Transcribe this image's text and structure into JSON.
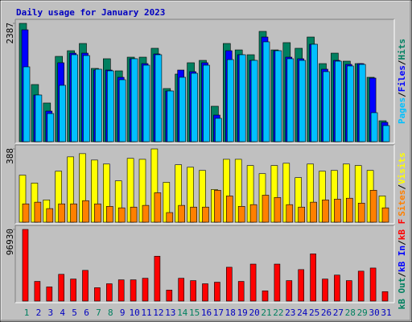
{
  "title": "Daily usage for January 2023",
  "chart_data": [
    {
      "type": "bar",
      "legend_separator": "/",
      "ylim": [
        0,
        2387
      ],
      "yticks": [
        2387
      ],
      "series": [
        {
          "name": "Hits",
          "color": "#008060",
          "values": [
            2387,
            1153,
            780,
            1721,
            1835,
            1981,
            1478,
            1673,
            1429,
            1705,
            1705,
            1884,
            1072,
            1364,
            1592,
            1640,
            715,
            1981,
            1851,
            1754,
            2225,
            1851,
            1998,
            1884,
            2111,
            1575,
            1786,
            1624,
            1575,
            1299,
            422
          ]
        },
        {
          "name": "Files",
          "color": "#0000ff",
          "values": [
            2257,
            942,
            617,
            1592,
            1786,
            1786,
            1445,
            1445,
            1299,
            1673,
            1575,
            1770,
            1023,
            1445,
            1413,
            1592,
            536,
            1835,
            1754,
            1640,
            2111,
            1835,
            1705,
            1673,
            1965,
            1462,
            1640,
            1559,
            1575,
            1283,
            390
          ]
        },
        {
          "name": "Pages",
          "color": "#00c0ff",
          "values": [
            1510,
            942,
            568,
            1137,
            1754,
            1738,
            1462,
            1429,
            1250,
            1673,
            1543,
            1754,
            1023,
            1299,
            1380,
            1543,
            471,
            1656,
            1754,
            1640,
            2014,
            1835,
            1673,
            1640,
            1965,
            1413,
            1624,
            1527,
            1559,
            585,
            325
          ]
        }
      ]
    },
    {
      "type": "bar",
      "legend_separator": "/",
      "ylim": [
        0,
        388
      ],
      "yticks": [
        388
      ],
      "series": [
        {
          "name": "Visits",
          "color": "#ffff00",
          "values": [
            249,
            207,
            118,
            270,
            346,
            363,
            329,
            308,
            219,
            338,
            333,
            388,
            211,
            304,
            291,
            274,
            173,
            333,
            333,
            300,
            257,
            300,
            312,
            236,
            308,
            270,
            274,
            308,
            300,
            274,
            139
          ]
        },
        {
          "name": "Sites",
          "color": "#ff8000",
          "values": [
            97,
            106,
            72,
            97,
            97,
            114,
            97,
            84,
            76,
            80,
            89,
            156,
            51,
            89,
            80,
            80,
            169,
            139,
            84,
            93,
            143,
            131,
            93,
            80,
            106,
            118,
            122,
            127,
            101,
            169,
            76
          ]
        }
      ]
    },
    {
      "type": "bar",
      "legend_separator": "/",
      "ylim": [
        0,
        96930
      ],
      "yticks": [
        96930
      ],
      "categories": [
        "1",
        "2",
        "3",
        "4",
        "5",
        "6",
        "7",
        "8",
        "9",
        "10",
        "11",
        "12",
        "13",
        "14",
        "15",
        "16",
        "17",
        "18",
        "19",
        "20",
        "21",
        "22",
        "23",
        "24",
        "25",
        "26",
        "27",
        "28",
        "29",
        "30",
        "31"
      ],
      "category_colors": [
        "#008060",
        "#0000c0",
        "#0000c0",
        "#0000c0",
        "#0000c0",
        "#0000c0",
        "#008060",
        "#008060",
        "#0000c0",
        "#0000c0",
        "#0000c0",
        "#0000c0",
        "#0000c0",
        "#008060",
        "#008060",
        "#0000c0",
        "#0000c0",
        "#0000c0",
        "#0000c0",
        "#0000c0",
        "#008060",
        "#008060",
        "#0000c0",
        "#0000c0",
        "#0000c0",
        "#0000c0",
        "#0000c0",
        "#008060",
        "#008060",
        "#0000c0",
        "#0000c0"
      ],
      "series": [
        {
          "name": "kB F",
          "color": "#ff0000",
          "values": [
            96930,
            26630,
            19170,
            36210,
            29820,
            41540,
            18110,
            23430,
            28760,
            28760,
            30890,
            60710,
            14910,
            30890,
            27690,
            23430,
            25560,
            45800,
            26630,
            50060,
            13850,
            50060,
            27690,
            42600,
            63900,
            29820,
            35150,
            27690,
            40470,
            44730,
            12780
          ]
        },
        {
          "name": "kB In",
          "color": "#0000ff"
        },
        {
          "name": "kB Out",
          "color": "#008060"
        }
      ]
    }
  ]
}
